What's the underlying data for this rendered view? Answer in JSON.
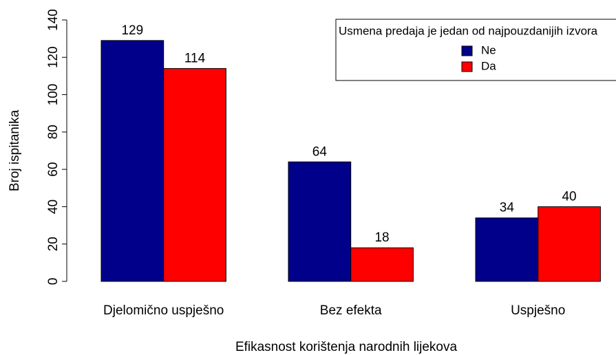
{
  "chart_data": {
    "type": "bar",
    "x_label": "Efikasnost korištenja narodnih lijekova",
    "y_label": "Broj ispitanika",
    "legend_title": "Usmena predaja je jedan od najpouzdanijih izvora",
    "categories": [
      "Djelomično uspješno",
      "Bez efekta",
      "Uspješno"
    ],
    "series": [
      {
        "name": "Ne",
        "color": "#00008b",
        "values": [
          129,
          64,
          34
        ]
      },
      {
        "name": "Da",
        "color": "#ff0000",
        "values": [
          114,
          18,
          40
        ]
      }
    ],
    "ylim": [
      0,
      140
    ],
    "yticks": [
      0,
      20,
      40,
      60,
      80,
      100,
      120,
      140
    ],
    "legend": "top-right"
  }
}
